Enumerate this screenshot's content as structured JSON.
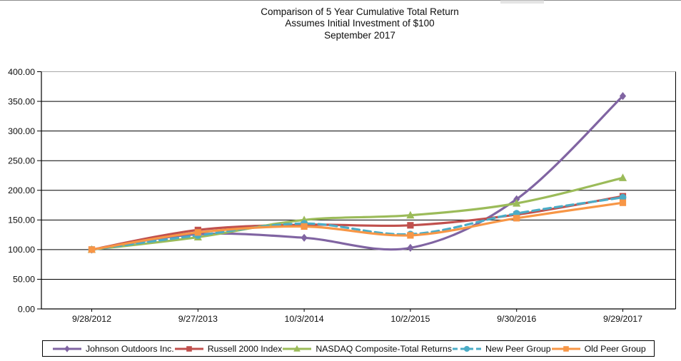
{
  "page": {
    "type_label": "performance-graph"
  },
  "chart_data": {
    "type": "line",
    "title": "Comparison of 5 Year Cumulative Total Return",
    "subtitle": "Assumes Initial Investment of $100",
    "period_label": "September 2017",
    "categories": [
      "9/28/2012",
      "9/27/2013",
      "10/3/2014",
      "10/2/2015",
      "9/30/2016",
      "9/29/2017"
    ],
    "xlabel": "",
    "ylabel": "",
    "ylim": [
      0,
      400
    ],
    "ytick_step": 50,
    "ytick_labels": [
      "0.00",
      "50.00",
      "100.00",
      "150.00",
      "200.00",
      "250.00",
      "300.00",
      "350.00",
      "400.00"
    ],
    "grid": true,
    "legend_position": "bottom",
    "axis_color": "#000000",
    "grid_color": "#000000",
    "top_grid_color": "#a8a8a8",
    "series": [
      {
        "name": "Johnson Outdoors Inc.",
        "color": "#8064A2",
        "marker": "diamond",
        "line": "solid",
        "values": [
          100,
          126,
          120,
          103,
          185,
          359
        ]
      },
      {
        "name": "Russell 2000 Index",
        "color": "#C0504D",
        "marker": "square",
        "line": "solid",
        "values": [
          100,
          133,
          142,
          141,
          159,
          190
        ]
      },
      {
        "name": "NASDAQ Composite-Total Returns",
        "color": "#9BBB59",
        "marker": "triangle",
        "line": "solid",
        "values": [
          100,
          121,
          150,
          158,
          178,
          221
        ]
      },
      {
        "name": "New Peer Group",
        "color": "#4BACC6",
        "marker": "circle",
        "line": "dashed",
        "values": [
          100,
          124,
          144,
          126,
          161,
          188
        ]
      },
      {
        "name": "Old Peer Group",
        "color": "#F79646",
        "marker": "square",
        "line": "solid",
        "values": [
          100,
          129,
          139,
          124,
          153,
          179
        ]
      }
    ]
  }
}
